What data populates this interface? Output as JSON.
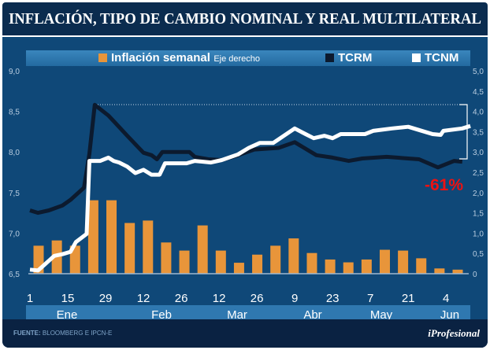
{
  "title": "INFLACIÓN, TIPO DE CAMBIO NOMINAL Y REAL MULTILATERAL",
  "footer": {
    "source_label": "FUENTE:",
    "source": "BLOOMBERG E IPCN-E",
    "logo": "iProfesional"
  },
  "colors": {
    "background": "#0f4878",
    "bars": "#e8953a",
    "tcrm": "#0c1a2e",
    "tcnm": "#ffffff",
    "annotation": "#ee1111"
  },
  "chart_data": {
    "type": "bar+line",
    "legend": {
      "placement": "top",
      "items": [
        {
          "name": "Inflación semanal",
          "note": "Eje derecho",
          "color": "#e8953a"
        },
        {
          "name": "TCRM",
          "color": "#0c1a2e"
        },
        {
          "name": "TCNM",
          "color": "#ffffff"
        }
      ]
    },
    "left_axis": {
      "ylim": [
        6.5,
        9.0
      ],
      "ticks": [
        "6,5",
        "7,0",
        "7,5",
        "8,0",
        "8,5",
        "9,0"
      ]
    },
    "right_axis": {
      "ylim": [
        0,
        5.0
      ],
      "ticks": [
        "0",
        "0,5",
        "1,0",
        "1,5",
        "2,0",
        "2,5",
        "3,0",
        "3,5",
        "4,0",
        "4,5",
        "5,0"
      ]
    },
    "x_ticks": [
      {
        "date": "01-01",
        "label": "1"
      },
      {
        "date": "01-15",
        "label": "15"
      },
      {
        "date": "01-29",
        "label": "29"
      },
      {
        "date": "02-12",
        "label": "12"
      },
      {
        "date": "02-26",
        "label": "26"
      },
      {
        "date": "03-12",
        "label": "12"
      },
      {
        "date": "03-26",
        "label": "26"
      },
      {
        "date": "04-09",
        "label": "9"
      },
      {
        "date": "04-23",
        "label": "23"
      },
      {
        "date": "05-07",
        "label": "7"
      },
      {
        "date": "05-21",
        "label": "21"
      },
      {
        "date": "06-04",
        "label": "4"
      }
    ],
    "months": [
      "Ene",
      "Feb",
      "Mar",
      "Abr",
      "May",
      "Jun"
    ],
    "inflacion_semanal": [
      0.69,
      0.82,
      0.69,
      1.81,
      1.81,
      1.25,
      1.31,
      0.77,
      0.57,
      1.19,
      0.57,
      0.27,
      0.47,
      0.69,
      0.87,
      0.51,
      0.35,
      0.28,
      0.35,
      0.59,
      0.57,
      0.38,
      0.13,
      0.1
    ],
    "series": [
      {
        "name": "TCRM",
        "points": [
          [
            "01-01",
            7.28
          ],
          [
            "01-04",
            7.25
          ],
          [
            "01-08",
            7.28
          ],
          [
            "01-13",
            7.34
          ],
          [
            "01-16",
            7.41
          ],
          [
            "01-21",
            7.56
          ],
          [
            "01-23",
            7.98
          ],
          [
            "01-25",
            8.58
          ],
          [
            "01-30",
            8.45
          ],
          [
            "02-01",
            8.38
          ],
          [
            "02-06",
            8.2
          ],
          [
            "02-12",
            7.99
          ],
          [
            "02-15",
            7.96
          ],
          [
            "02-17",
            7.91
          ],
          [
            "02-19",
            8.0
          ],
          [
            "03-01",
            8.0
          ],
          [
            "03-03",
            7.94
          ],
          [
            "03-08",
            7.91
          ],
          [
            "03-13",
            7.9
          ],
          [
            "03-19",
            7.96
          ],
          [
            "03-25",
            8.03
          ],
          [
            "04-03",
            8.05
          ],
          [
            "04-09",
            8.12
          ],
          [
            "04-12",
            8.06
          ],
          [
            "04-17",
            7.96
          ],
          [
            "04-23",
            7.93
          ],
          [
            "04-29",
            7.89
          ],
          [
            "05-04",
            7.92
          ],
          [
            "05-13",
            7.94
          ],
          [
            "05-25",
            7.91
          ],
          [
            "06-01",
            7.81
          ],
          [
            "06-07",
            7.89
          ],
          [
            "06-10",
            7.88
          ]
        ]
      },
      {
        "name": "TCNM",
        "points": [
          [
            "01-01",
            6.55
          ],
          [
            "01-04",
            6.54
          ],
          [
            "01-07",
            6.63
          ],
          [
            "01-10",
            6.72
          ],
          [
            "01-13",
            6.74
          ],
          [
            "01-16",
            6.77
          ],
          [
            "01-18",
            6.89
          ],
          [
            "01-22",
            6.99
          ],
          [
            "01-23",
            7.89
          ],
          [
            "01-27",
            7.89
          ],
          [
            "01-30",
            7.93
          ],
          [
            "02-01",
            7.89
          ],
          [
            "02-03",
            7.87
          ],
          [
            "02-06",
            7.82
          ],
          [
            "02-09",
            7.74
          ],
          [
            "02-12",
            7.78
          ],
          [
            "02-15",
            7.72
          ],
          [
            "02-18",
            7.72
          ],
          [
            "02-20",
            7.86
          ],
          [
            "02-28",
            7.86
          ],
          [
            "03-03",
            7.89
          ],
          [
            "03-09",
            7.87
          ],
          [
            "03-13",
            7.9
          ],
          [
            "03-19",
            7.97
          ],
          [
            "03-23",
            8.05
          ],
          [
            "03-27",
            8.11
          ],
          [
            "04-01",
            8.11
          ],
          [
            "04-09",
            8.29
          ],
          [
            "04-13",
            8.22
          ],
          [
            "04-16",
            8.17
          ],
          [
            "04-20",
            8.2
          ],
          [
            "04-23",
            8.17
          ],
          [
            "04-26",
            8.22
          ],
          [
            "05-05",
            8.22
          ],
          [
            "05-08",
            8.26
          ],
          [
            "05-15",
            8.29
          ],
          [
            "05-21",
            8.31
          ],
          [
            "05-25",
            8.27
          ],
          [
            "05-30",
            8.22
          ],
          [
            "06-02",
            8.21
          ],
          [
            "06-03",
            8.26
          ],
          [
            "06-10",
            8.29
          ],
          [
            "06-13",
            8.32
          ]
        ]
      }
    ],
    "annotation": "-61%"
  }
}
